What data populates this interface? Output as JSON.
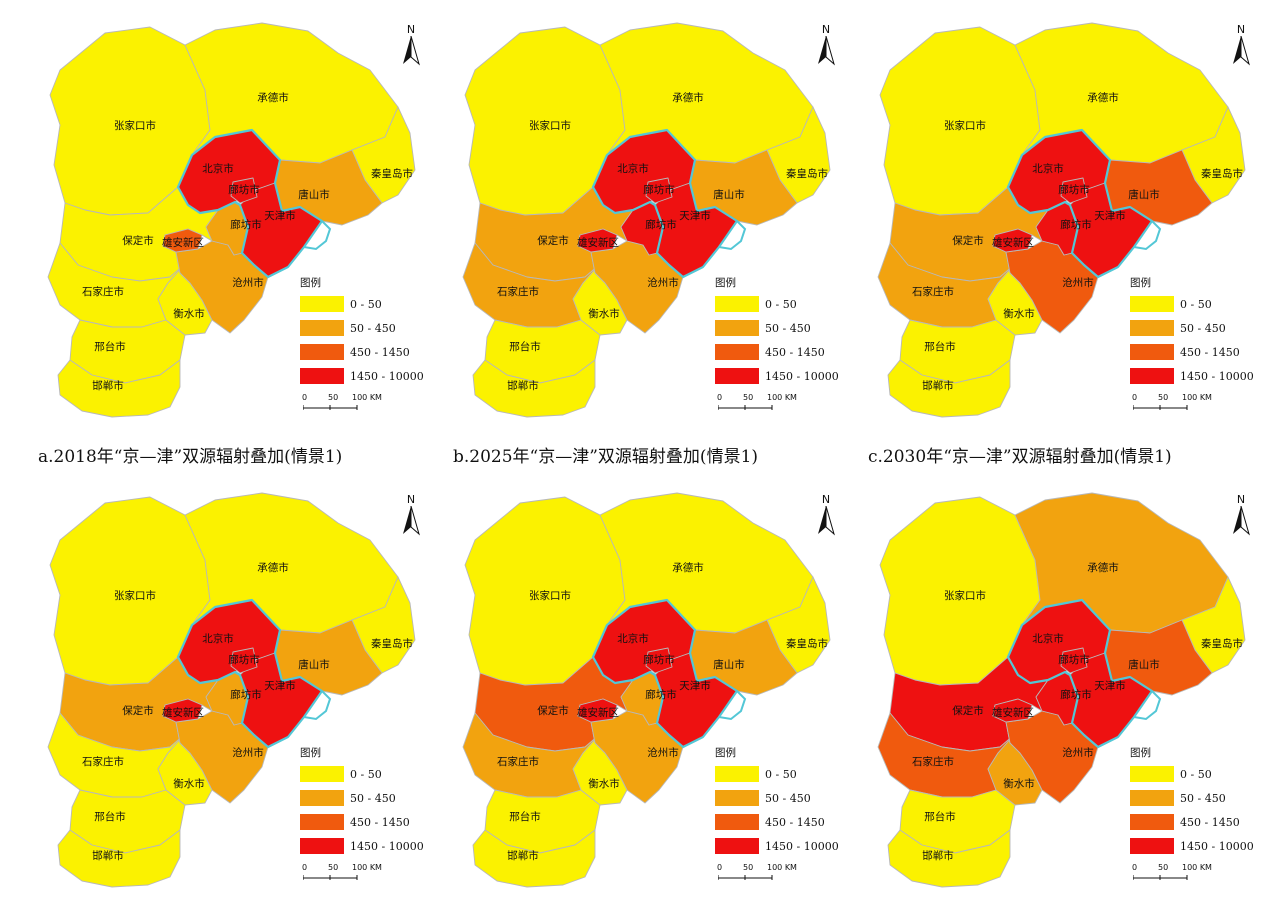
{
  "north_label": "N",
  "legend": {
    "title": "图例",
    "classes": [
      {
        "label": "0  -  50",
        "color": "#fbf200"
      },
      {
        "label": "50  -  450",
        "color": "#f2a30f"
      },
      {
        "label": "450  -  1450",
        "color": "#f05a0e"
      },
      {
        "label": "1450  -  10000",
        "color": "#ee1111"
      }
    ]
  },
  "scale": {
    "labels": [
      "0",
      "50",
      "100 KM"
    ]
  },
  "cities": {
    "chengde": "承德市",
    "zhangjiakou": "张家口市",
    "beijing": "北京市",
    "qinhuangdao": "秦皇岛市",
    "langfang_north": "廊坊市",
    "tangshan": "唐山市",
    "langfang": "廊坊市",
    "tianjin": "天津市",
    "baoding": "保定市",
    "xiongan": "雄安新区",
    "shijiazhuang": "石家庄市",
    "cangzhou": "沧州市",
    "hengshui": "衡水市",
    "xingtai": "邢台市",
    "handan": "邯郸市"
  },
  "panels": [
    {
      "caption": "a.2018年“京—津”双源辐射叠加(情景1)",
      "classes": {
        "chengde": 0,
        "zhangjiakou": 0,
        "beijing": 3,
        "qinhuangdao": 0,
        "langfang_north": 3,
        "tangshan": 1,
        "langfang": 1,
        "tianjin": 3,
        "baoding": 0,
        "xiongan": 2,
        "shijiazhuang": 0,
        "cangzhou": 1,
        "hengshui": 0,
        "xingtai": 0,
        "handan": 0
      }
    },
    {
      "caption": "b.2025年“京—津”双源辐射叠加(情景1)",
      "classes": {
        "chengde": 0,
        "zhangjiakou": 0,
        "beijing": 3,
        "qinhuangdao": 0,
        "langfang_north": 3,
        "tangshan": 1,
        "langfang": 3,
        "tianjin": 3,
        "baoding": 1,
        "xiongan": 3,
        "shijiazhuang": 1,
        "cangzhou": 1,
        "hengshui": 0,
        "xingtai": 0,
        "handan": 0
      }
    },
    {
      "caption": "c.2030年“京—津”双源辐射叠加(情景1)",
      "classes": {
        "chengde": 0,
        "zhangjiakou": 0,
        "beijing": 3,
        "qinhuangdao": 0,
        "langfang_north": 3,
        "tangshan": 2,
        "langfang": 3,
        "tianjin": 3,
        "baoding": 1,
        "xiongan": 3,
        "shijiazhuang": 1,
        "cangzhou": 2,
        "hengshui": 0,
        "xingtai": 0,
        "handan": 0
      }
    },
    {
      "caption": "",
      "classes": {
        "chengde": 0,
        "zhangjiakou": 0,
        "beijing": 3,
        "qinhuangdao": 0,
        "langfang_north": 3,
        "tangshan": 1,
        "langfang": 1,
        "tianjin": 3,
        "baoding": 1,
        "xiongan": 3,
        "shijiazhuang": 0,
        "cangzhou": 1,
        "hengshui": 0,
        "xingtai": 0,
        "handan": 0
      }
    },
    {
      "caption": "",
      "classes": {
        "chengde": 0,
        "zhangjiakou": 0,
        "beijing": 3,
        "qinhuangdao": 0,
        "langfang_north": 3,
        "tangshan": 1,
        "langfang": 1,
        "tianjin": 3,
        "baoding": 2,
        "xiongan": 3,
        "shijiazhuang": 1,
        "cangzhou": 1,
        "hengshui": 0,
        "xingtai": 0,
        "handan": 0
      }
    },
    {
      "caption": "",
      "classes": {
        "chengde": 1,
        "zhangjiakou": 0,
        "beijing": 3,
        "qinhuangdao": 0,
        "langfang_north": 3,
        "tangshan": 2,
        "langfang": 3,
        "tianjin": 3,
        "baoding": 3,
        "xiongan": 3,
        "shijiazhuang": 2,
        "cangzhou": 2,
        "hengshui": 1,
        "xingtai": 0,
        "handan": 0
      }
    }
  ]
}
